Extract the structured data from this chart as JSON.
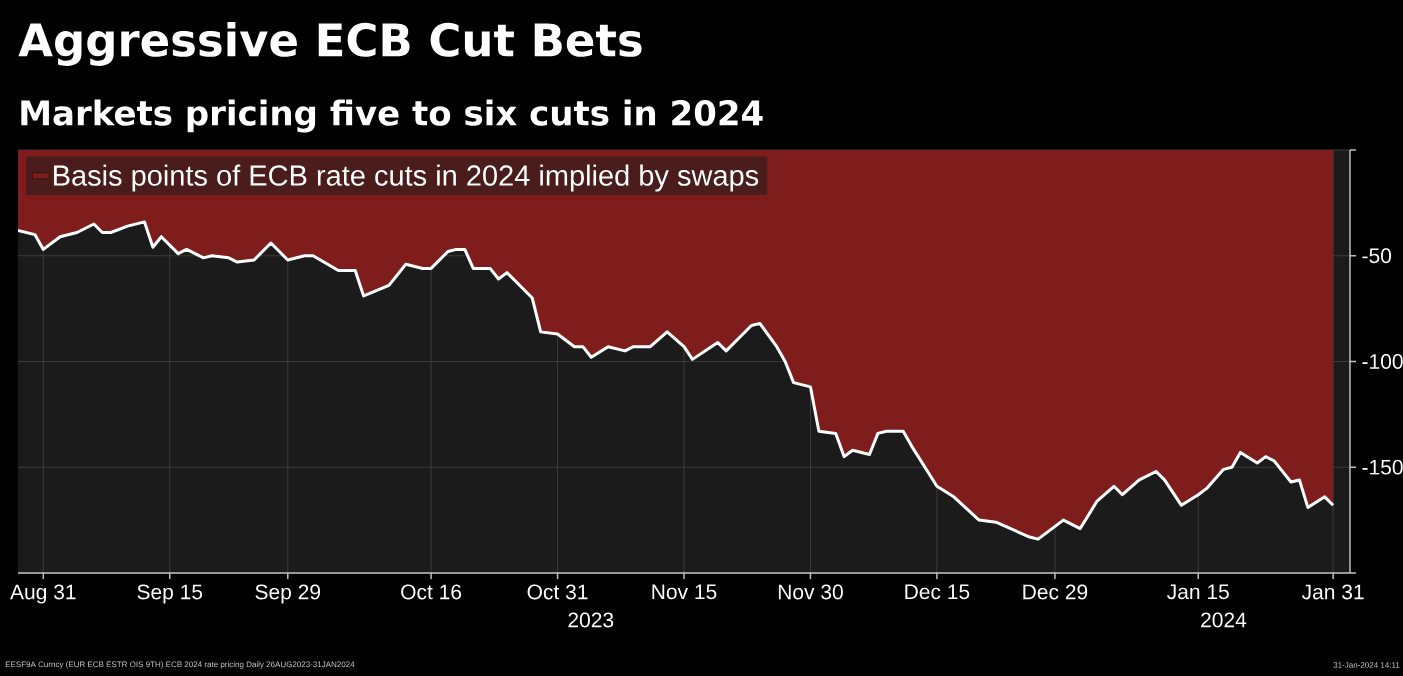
{
  "chart_data": {
    "type": "area",
    "title": "Aggressive ECB Cut Bets",
    "subtitle": "Markets pricing five to six cuts in 2024",
    "x": [
      "2023-08-28",
      "2023-08-30",
      "2023-08-31",
      "2023-09-02",
      "2023-09-04",
      "2023-09-06",
      "2023-09-07",
      "2023-09-08",
      "2023-09-10",
      "2023-09-12",
      "2023-09-13",
      "2023-09-14",
      "2023-09-16",
      "2023-09-17",
      "2023-09-19",
      "2023-09-20",
      "2023-09-22",
      "2023-09-23",
      "2023-09-25",
      "2023-09-27",
      "2023-09-29",
      "2023-10-01",
      "2023-10-02",
      "2023-10-05",
      "2023-10-07",
      "2023-10-08",
      "2023-10-11",
      "2023-10-13",
      "2023-10-15",
      "2023-10-16",
      "2023-10-18",
      "2023-10-19",
      "2023-10-20",
      "2023-10-21",
      "2023-10-23",
      "2023-10-24",
      "2023-10-25",
      "2023-10-28",
      "2023-10-29",
      "2023-10-31",
      "2023-11-02",
      "2023-11-03",
      "2023-11-04",
      "2023-11-06",
      "2023-11-08",
      "2023-11-09",
      "2023-11-11",
      "2023-11-13",
      "2023-11-15",
      "2023-11-16",
      "2023-11-19",
      "2023-11-20",
      "2023-11-22",
      "2023-11-23",
      "2023-11-24",
      "2023-11-26",
      "2023-11-27",
      "2023-11-28",
      "2023-11-30",
      "2023-12-01",
      "2023-12-03",
      "2023-12-04",
      "2023-12-05",
      "2023-12-07",
      "2023-12-08",
      "2023-12-09",
      "2023-12-11",
      "2023-12-12",
      "2023-12-15",
      "2023-12-17",
      "2023-12-20",
      "2023-12-22",
      "2023-12-26",
      "2023-12-27",
      "2023-12-30",
      "2024-01-01",
      "2024-01-03",
      "2024-01-05",
      "2024-01-06",
      "2024-01-08",
      "2024-01-10",
      "2024-01-11",
      "2024-01-13",
      "2024-01-15",
      "2024-01-16",
      "2024-01-18",
      "2024-01-19",
      "2024-01-20",
      "2024-01-22",
      "2024-01-23",
      "2024-01-24",
      "2024-01-26",
      "2024-01-27",
      "2024-01-28",
      "2024-01-30",
      "2024-01-31"
    ],
    "series": [
      {
        "name": "Basis points of ECB rate cuts in 2024 implied by swaps",
        "color": "#7f1d1d",
        "values": [
          -38,
          -40,
          -47,
          -41,
          -39,
          -35,
          -39,
          -39,
          -36,
          -34,
          -46,
          -41,
          -49,
          -47,
          -51,
          -50,
          -51,
          -53,
          -52,
          -44,
          -52,
          -50,
          -50,
          -57,
          -57,
          -69,
          -64,
          -54,
          -56,
          -56,
          -48,
          -47,
          -47,
          -56,
          -56,
          -61,
          -58,
          -70,
          -86,
          -87,
          -93,
          -93,
          -98,
          -93,
          -95,
          -93,
          -93,
          -86,
          -93,
          -99,
          -91,
          -95,
          -87,
          -83,
          -82,
          -93,
          -100,
          -110,
          -112,
          -133,
          -134,
          -145,
          -142,
          -144,
          -134,
          -133,
          -133,
          -140,
          -159,
          -164,
          -175,
          -176,
          -183,
          -184,
          -175,
          -179,
          -166,
          -159,
          -163,
          -156,
          -152,
          -156,
          -168,
          -163,
          -160,
          -151,
          -150,
          -143,
          -148,
          -145,
          -147,
          -157,
          -156,
          -169,
          -164,
          -168
        ]
      }
    ],
    "xlim": [
      "2023-08-28",
      "2024-02-02"
    ],
    "xticks": [
      {
        "value": "2023-08-31",
        "label": "Aug 31"
      },
      {
        "value": "2023-09-15",
        "label": "Sep 15"
      },
      {
        "value": "2023-09-29",
        "label": "Sep 29"
      },
      {
        "value": "2023-10-16",
        "label": "Oct 16"
      },
      {
        "value": "2023-10-31",
        "label": "Oct 31"
      },
      {
        "value": "2023-11-15",
        "label": "Nov 15"
      },
      {
        "value": "2023-11-30",
        "label": "Nov 30"
      },
      {
        "value": "2023-12-15",
        "label": "Dec 15"
      },
      {
        "value": "2023-12-29",
        "label": "Dec 29"
      },
      {
        "value": "2024-01-15",
        "label": "Jan 15"
      },
      {
        "value": "2024-01-31",
        "label": "Jan 31"
      }
    ],
    "ylim": [
      -200,
      0
    ],
    "yticks": [
      {
        "value": 0,
        "label": null
      },
      -50,
      -100,
      -150,
      {
        "value": -200,
        "label": null
      }
    ],
    "grid": true,
    "legend": "top left",
    "annotations": [
      "2023",
      "2024",
      "EESF9A Curncy (EUR ECB ESTR OIS 9TH) ECB 2024 rate pricing  Daily 26AUG2023-31JAN2024",
      "31-Jan-2024 14:11"
    ]
  }
}
